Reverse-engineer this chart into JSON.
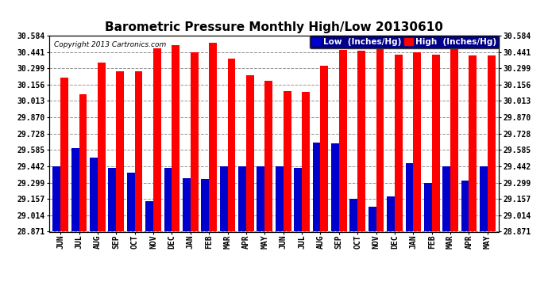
{
  "title": "Barometric Pressure Monthly High/Low 20130610",
  "copyright": "Copyright 2013 Cartronics.com",
  "categories": [
    "JUN",
    "JUL",
    "AUG",
    "SEP",
    "OCT",
    "NOV",
    "DEC",
    "JAN",
    "FEB",
    "MAR",
    "APR",
    "MAY",
    "JUN",
    "JUL",
    "AUG",
    "SEP",
    "OCT",
    "NOV",
    "DEC",
    "JAN",
    "FEB",
    "MAR",
    "APR",
    "MAY"
  ],
  "high_values": [
    30.22,
    30.07,
    30.35,
    30.27,
    30.27,
    30.47,
    30.5,
    30.44,
    30.52,
    30.38,
    30.24,
    30.19,
    30.1,
    30.09,
    30.32,
    30.46,
    30.45,
    30.57,
    30.42,
    30.44,
    30.42,
    30.47,
    30.41,
    30.41
  ],
  "low_values": [
    29.44,
    29.6,
    29.52,
    29.43,
    29.39,
    29.14,
    29.43,
    29.34,
    29.33,
    29.44,
    29.44,
    29.44,
    29.44,
    29.43,
    29.65,
    29.64,
    29.16,
    29.09,
    29.18,
    29.47,
    29.3,
    29.44,
    29.32,
    29.44
  ],
  "high_color": "#ff0000",
  "low_color": "#0000cc",
  "background_color": "#ffffff",
  "grid_color": "#888888",
  "yticks": [
    28.871,
    29.014,
    29.157,
    29.299,
    29.442,
    29.585,
    29.728,
    29.87,
    30.013,
    30.156,
    30.299,
    30.441,
    30.584
  ],
  "ymin": 28.871,
  "ymax": 30.584,
  "title_fontsize": 11,
  "tick_fontsize": 7,
  "legend_fontsize": 7.5,
  "copyright_fontsize": 6.5
}
